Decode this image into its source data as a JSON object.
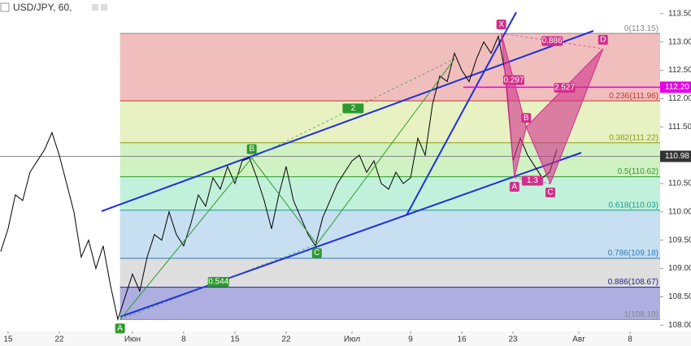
{
  "header": {
    "title": "USD/JPY, 60,"
  },
  "chart_data": {
    "type": "line",
    "color": "#000000",
    "x": [
      -1,
      0,
      1,
      2,
      3,
      4,
      5,
      6,
      7,
      8,
      9,
      10,
      11,
      12,
      13,
      14,
      15,
      16,
      17,
      18,
      19,
      20,
      21,
      22,
      23,
      24,
      25,
      26,
      27,
      28,
      29,
      30,
      31,
      32,
      33,
      34,
      35,
      36,
      37,
      38,
      39,
      40,
      41,
      42,
      43,
      44,
      45,
      46,
      47,
      48,
      49,
      50,
      51,
      52,
      53,
      54,
      55,
      56,
      57,
      58,
      59,
      60,
      61,
      62,
      63,
      64,
      65,
      66,
      67,
      68,
      69,
      70,
      71,
      72,
      73,
      74,
      75
    ],
    "values": [
      109.3,
      109.7,
      110.3,
      110.2,
      110.7,
      110.9,
      111.1,
      111.4,
      111.0,
      110.5,
      110.0,
      109.2,
      109.5,
      109.0,
      109.4,
      108.7,
      108.1,
      108.5,
      108.9,
      108.6,
      109.2,
      109.6,
      109.5,
      110.0,
      109.6,
      109.4,
      109.8,
      110.3,
      110.1,
      110.6,
      110.4,
      110.8,
      110.5,
      110.9,
      110.95,
      110.6,
      110.2,
      109.7,
      110.3,
      110.8,
      110.2,
      109.9,
      109.6,
      109.4,
      109.9,
      110.2,
      110.5,
      110.7,
      110.9,
      111.0,
      110.7,
      110.9,
      110.5,
      110.4,
      110.7,
      110.5,
      110.6,
      111.3,
      111.0,
      111.9,
      112.4,
      112.3,
      112.8,
      112.5,
      112.3,
      112.7,
      113.0,
      112.8,
      113.1,
      112.4,
      110.9,
      111.3,
      111.0,
      110.8,
      110.6,
      110.7,
      111.1
    ],
    "xlim": [
      -1.1,
      89.1
    ],
    "xticks": [
      {
        "value": 0,
        "label": "15"
      },
      {
        "value": 7,
        "label": "22"
      },
      {
        "value": 17,
        "label": "Июн"
      },
      {
        "value": 24,
        "label": "8"
      },
      {
        "value": 31,
        "label": "15"
      },
      {
        "value": 38,
        "label": "22"
      },
      {
        "value": 47,
        "label": "Июл"
      },
      {
        "value": 55,
        "label": "9"
      },
      {
        "value": 62,
        "label": "16"
      },
      {
        "value": 69,
        "label": "23"
      },
      {
        "value": 78,
        "label": "Авг"
      },
      {
        "value": 85,
        "label": "8"
      }
    ],
    "ylim": [
      107.89,
      113.74
    ],
    "yticks": [
      {
        "value": 108,
        "label": "108.00"
      },
      {
        "value": 108.5,
        "label": "108.50"
      },
      {
        "value": 109,
        "label": "109.00"
      },
      {
        "value": 109.5,
        "label": "109.50"
      },
      {
        "value": 110,
        "label": "110.00"
      },
      {
        "value": 110.5,
        "label": "110.50"
      },
      {
        "value": 111,
        "label": "111.00"
      },
      {
        "value": 111.5,
        "label": "111.50"
      },
      {
        "value": 112,
        "label": "112.00"
      },
      {
        "value": 112.5,
        "label": "112.50"
      },
      {
        "value": 113,
        "label": "113.00"
      },
      {
        "value": 113.5,
        "label": "113.50"
      }
    ],
    "current_price": {
      "value": 110.98,
      "label": "110.98",
      "color": "#333333"
    },
    "marked_price": {
      "value": 112.2,
      "label": "112.20",
      "color": "#e600e6"
    },
    "fib_start": 15.3,
    "fib_levels": [
      {
        "price": 113.15,
        "label": "0(113.15)",
        "color": "#888888",
        "fill": "rgba(222,100,100,0.42)"
      },
      {
        "price": 111.96,
        "label": "0.236(111.96)",
        "color": "#c0392b",
        "fill": "rgba(205,225,120,0.45)"
      },
      {
        "price": 111.22,
        "label": "0.382(111.22)",
        "color": "#8a9a1a",
        "fill": "rgba(150,225,120,0.45)"
      },
      {
        "price": 110.62,
        "label": "0.5(110.62)",
        "color": "#2e9a2e",
        "fill": "rgba(120,225,175,0.45)"
      },
      {
        "price": 110.03,
        "label": "0.618(110.03)",
        "color": "#1a9a8a",
        "fill": "rgba(130,185,225,0.45)"
      },
      {
        "price": 109.18,
        "label": "0.786(109.18)",
        "color": "#2e7ab5",
        "fill": "rgba(190,190,190,0.5)"
      },
      {
        "price": 108.67,
        "label": "0.886(108.67)",
        "color": "#22228a",
        "fill": "rgba(120,120,205,0.6)"
      },
      {
        "price": 108.1,
        "label": "1(108.10)",
        "color": "#888888"
      }
    ],
    "patterns": [
      {
        "color": "#2e9a2e",
        "points": [
          {
            "label": "A",
            "x": 15.3,
            "y": 108.1
          },
          {
            "label": "B",
            "x": 33.3,
            "y": 110.95
          },
          {
            "label": "C",
            "x": 42.2,
            "y": 109.43
          },
          {
            "label": null,
            "x": 61,
            "y": 112.7
          }
        ],
        "ratios": [
          0.544,
          2
        ]
      },
      {
        "color": "#d0308a",
        "points": [
          {
            "label": "X",
            "x": 67.4,
            "y": 113.15
          },
          {
            "label": "A",
            "x": 69.2,
            "y": 110.6
          },
          {
            "label": "B",
            "x": 70.8,
            "y": 111.5
          },
          {
            "label": "C",
            "x": 74.1,
            "y": 110.5
          },
          {
            "label": "D",
            "x": 81.3,
            "y": 112.88
          }
        ],
        "ratios": [
          0.297,
          0.886,
          2.527,
          1.3
        ]
      }
    ]
  }
}
